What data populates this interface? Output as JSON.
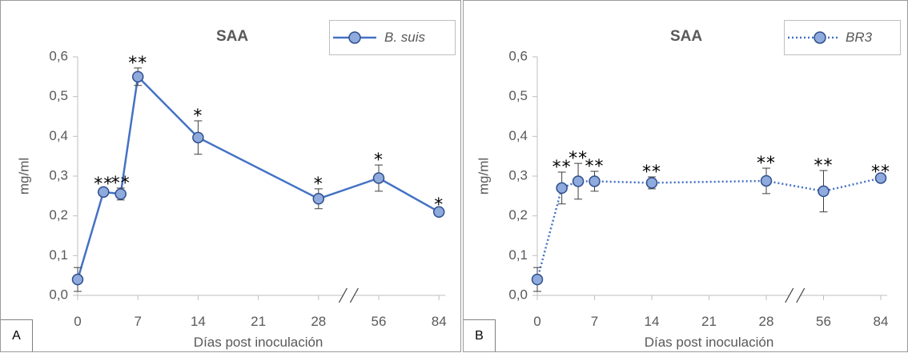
{
  "chart_data": [
    {
      "type": "line",
      "panel_label": "A",
      "title": "SAA",
      "xlabel": "Días post inoculación",
      "ylabel": "mg/ml",
      "x_tick_labels": [
        "0",
        "7",
        "14",
        "21",
        "28",
        "56",
        "84"
      ],
      "y_tick_labels": [
        "0,0",
        "0,1",
        "0,2",
        "0,3",
        "0,4",
        "0,5",
        "0,6"
      ],
      "ylim": [
        0,
        0.6
      ],
      "axis_break": "between 28 and 56",
      "grid": false,
      "legend_position": "top-right",
      "series": [
        {
          "name": "B. suis",
          "line_style": "solid",
          "x": [
            "0",
            "3",
            "5",
            "7",
            "14",
            "28",
            "56",
            "84"
          ],
          "y": [
            0.04,
            0.26,
            0.255,
            0.55,
            0.397,
            0.243,
            0.295,
            0.21
          ],
          "error": [
            0.03,
            0.008,
            0.015,
            0.022,
            0.042,
            0.025,
            0.033,
            0.005
          ],
          "significance": [
            "",
            "**",
            "**",
            "**",
            "*",
            "*",
            "*",
            "*"
          ]
        }
      ]
    },
    {
      "type": "line",
      "panel_label": "B",
      "title": "SAA",
      "xlabel": "Días post inoculación",
      "ylabel": "mg/ml",
      "x_tick_labels": [
        "0",
        "7",
        "14",
        "21",
        "28",
        "56",
        "84"
      ],
      "y_tick_labels": [
        "0,0",
        "0,1",
        "0,2",
        "0,3",
        "0,4",
        "0,5",
        "0,6"
      ],
      "ylim": [
        0,
        0.6
      ],
      "axis_break": "between 28 and 56",
      "grid": false,
      "legend_position": "top-right",
      "series": [
        {
          "name": "BR3",
          "line_style": "dotted",
          "x": [
            "0",
            "3",
            "5",
            "7",
            "14",
            "28",
            "56",
            "84"
          ],
          "y": [
            0.04,
            0.27,
            0.287,
            0.287,
            0.283,
            0.288,
            0.262,
            0.295
          ],
          "error": [
            0.03,
            0.04,
            0.045,
            0.025,
            0.015,
            0.032,
            0.052,
            0.003
          ],
          "significance": [
            "",
            "**",
            "**",
            "**",
            "**",
            "**",
            "**",
            "**"
          ]
        }
      ]
    }
  ],
  "colors": {
    "line": "#4472c4",
    "marker_fill": "#8faadc",
    "marker_edge": "#2f4e8c",
    "text": "#595959",
    "title": "#595959",
    "axis": "#bfbfbf"
  }
}
